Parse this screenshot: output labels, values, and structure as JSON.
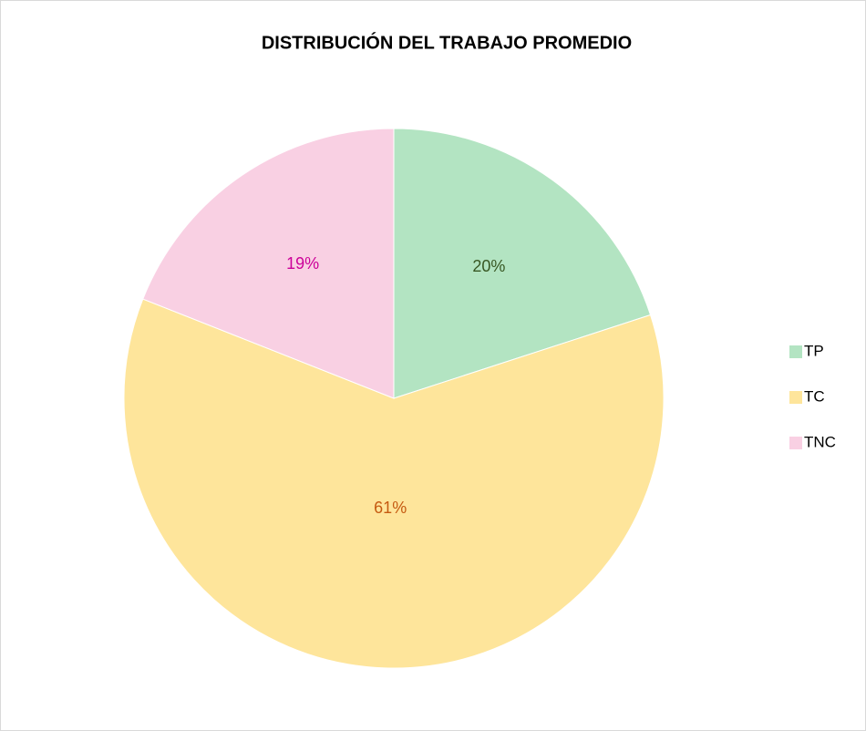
{
  "chart_data": {
    "type": "pie",
    "title": "DISTRIBUCIÓN DEL TRABAJO PROMEDIO",
    "categories": [
      "TP",
      "TC",
      "TNC"
    ],
    "values": [
      20,
      61,
      19
    ],
    "value_labels": [
      "20%",
      "61%",
      "19%"
    ],
    "colors": [
      "#b3e4c2",
      "#fee59b",
      "#f9d0e3"
    ],
    "label_colors": [
      "#385723",
      "#c55a11",
      "#cc0099"
    ],
    "legend": "right"
  }
}
